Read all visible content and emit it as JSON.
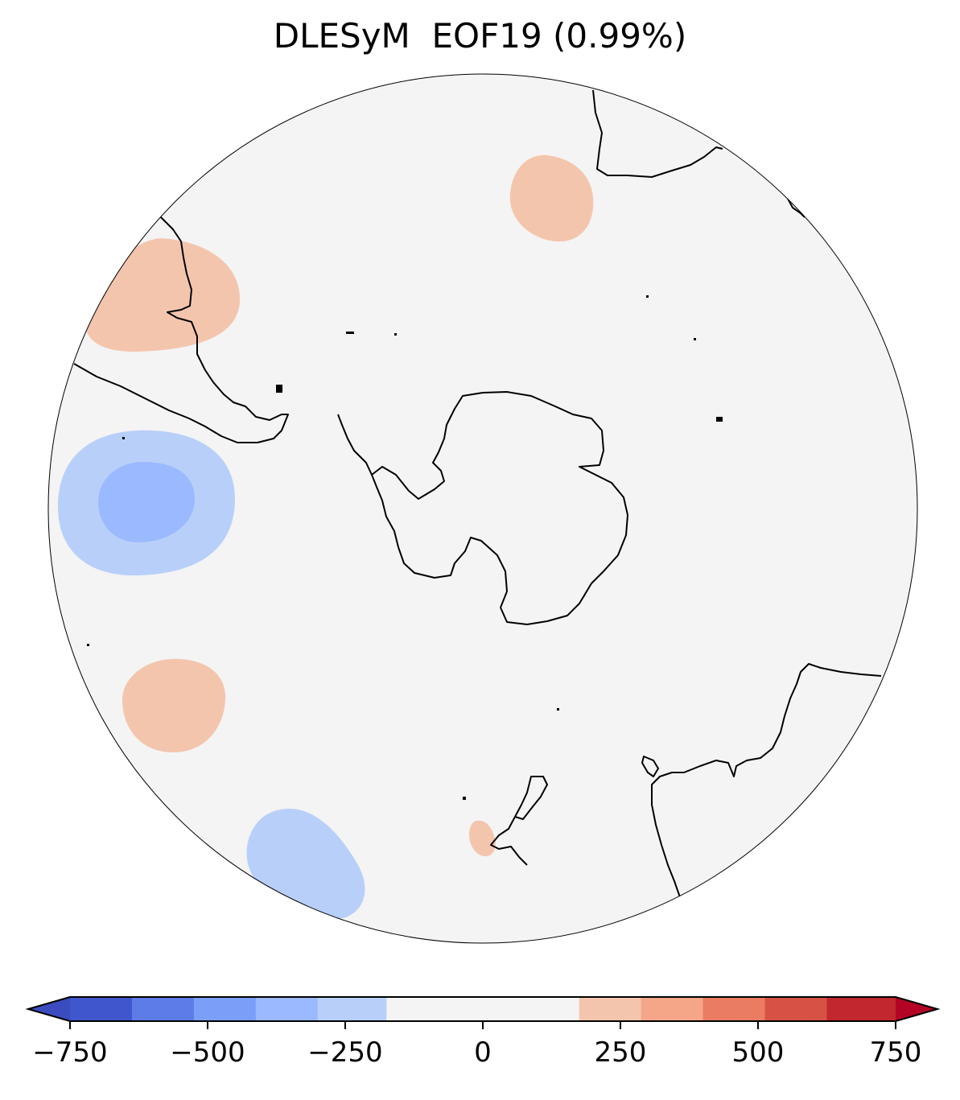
{
  "title": "DLESyM  EOF19 (0.99%)",
  "map": {
    "projection": "south-polar-stereographic",
    "background_color": "#f4f4f4",
    "coastline_color": "#000000"
  },
  "anomaly_regions": [
    {
      "name": "positive-anomaly-south-america",
      "level": 250
    },
    {
      "name": "positive-anomaly-indian-ocean-north",
      "level": 250
    },
    {
      "name": "negative-anomaly-south-pacific",
      "level": -250
    },
    {
      "name": "negative-anomaly-south-pacific-core",
      "level": -375
    },
    {
      "name": "positive-anomaly-tasman-sea",
      "level": 250
    },
    {
      "name": "negative-anomaly-southwest-pacific",
      "level": -250
    },
    {
      "name": "positive-anomaly-new-zealand",
      "level": 250
    }
  ],
  "colorbar": {
    "extend": "both",
    "ticks": [
      -750,
      -500,
      -250,
      0,
      250,
      500,
      750
    ],
    "tick_labels": [
      "−750",
      "−500",
      "−250",
      "0",
      "250",
      "500",
      "750"
    ],
    "min": -750,
    "max": 750,
    "boundaries": [
      -750,
      -637.5,
      -525,
      -412.5,
      -300,
      -175,
      175,
      287.5,
      400,
      512.5,
      625,
      750
    ],
    "colors": [
      "#3f56cc",
      "#5d7ce6",
      "#7b9ff9",
      "#9ab9ff",
      "#b8d0f9",
      "#f4f4f4",
      "#f4c5ad",
      "#f5a588",
      "#ea7c61",
      "#d65244",
      "#c0282e"
    ],
    "extend_low_color": "#3a4cc0",
    "extend_high_color": "#b40426"
  }
}
